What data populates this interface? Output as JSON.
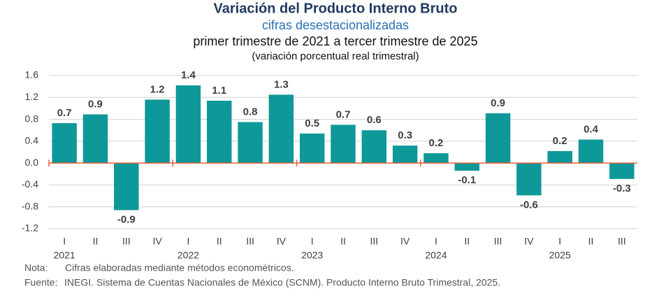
{
  "chart_data": {
    "type": "bar",
    "title": "Variación del Producto Interno Bruto",
    "subtitle": "cifras desestacionalizadas",
    "period": "primer trimestre de 2021 a tercer trimestre de 2025",
    "units": "(variación porcentual real trimestral)",
    "categories": [
      "I",
      "II",
      "III",
      "IV",
      "I",
      "II",
      "III",
      "IV",
      "I",
      "II",
      "III",
      "IV",
      "I",
      "II",
      "III",
      "IV",
      "I",
      "II",
      "III"
    ],
    "groups": [
      "2021",
      "2022",
      "2023",
      "2024",
      "2025"
    ],
    "values": [
      0.73,
      0.89,
      -0.86,
      1.16,
      1.42,
      1.14,
      0.75,
      1.25,
      0.54,
      0.7,
      0.6,
      0.32,
      0.18,
      -0.14,
      0.91,
      -0.59,
      0.22,
      0.43,
      -0.29
    ],
    "value_labels": [
      "0.7",
      "0.9",
      "-0.9",
      "1.2",
      "1.4",
      "1.1",
      "0.8",
      "1.3",
      "0.5",
      "0.7",
      "0.6",
      "0.3",
      "0.2",
      "-0.1",
      "0.9",
      "-0.6",
      "0.2",
      "0.4",
      "-0.3"
    ],
    "color": "#0e9899",
    "ylim": [
      -1.2,
      1.6
    ],
    "yticks": [
      1.6,
      1.2,
      0.8,
      0.4,
      {
        "value": 0,
        "label": "0.0"
      },
      -0.4,
      -0.8,
      -1.2
    ],
    "grid": true,
    "notes": [
      {
        "label": "Nota:",
        "text": "Cifras elaboradas mediante métodos econométricos."
      },
      {
        "label": "Fuente:",
        "text": "INEGI. Sistema de Cuentas Nacionales de México (SCNM). Producto Interno Bruto Trimestral, 2025."
      }
    ]
  }
}
